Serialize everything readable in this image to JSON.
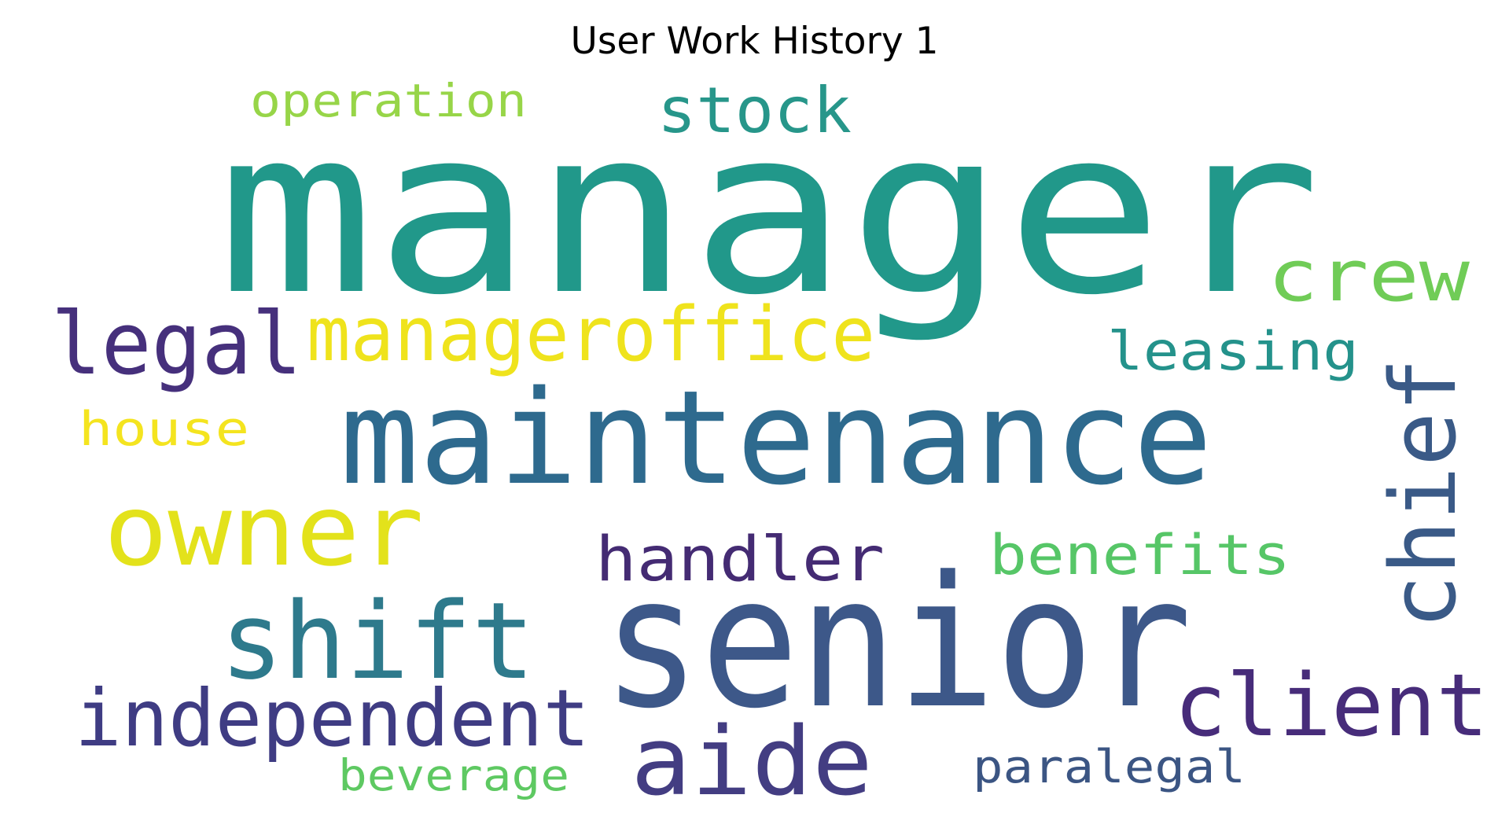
{
  "title": "User Work History 1",
  "words": [
    {
      "text": "manager",
      "color": "#21988a"
    },
    {
      "text": "maintenance",
      "color": "#2e6a8e"
    },
    {
      "text": "senior",
      "color": "#3d5889"
    },
    {
      "text": "owner",
      "color": "#e3e21b"
    },
    {
      "text": "shift",
      "color": "#2e7a8c"
    },
    {
      "text": "aide",
      "color": "#433d82"
    },
    {
      "text": "chief",
      "color": "#3a5a87"
    },
    {
      "text": "client",
      "color": "#472c7a"
    },
    {
      "text": "legal",
      "color": "#46307c"
    },
    {
      "text": "manageroffice",
      "color": "#efe31c"
    },
    {
      "text": "independent",
      "color": "#3f3c83"
    },
    {
      "text": "crew",
      "color": "#70cc57"
    },
    {
      "text": "stock",
      "color": "#27968a"
    },
    {
      "text": "handler",
      "color": "#442b73"
    },
    {
      "text": "benefits",
      "color": "#56c667"
    },
    {
      "text": "leasing",
      "color": "#24928b"
    },
    {
      "text": "operation",
      "color": "#97d548"
    },
    {
      "text": "house",
      "color": "#f4e41f"
    },
    {
      "text": "paralegal",
      "color": "#3b5583"
    },
    {
      "text": "beverage",
      "color": "#5ec962"
    }
  ]
}
